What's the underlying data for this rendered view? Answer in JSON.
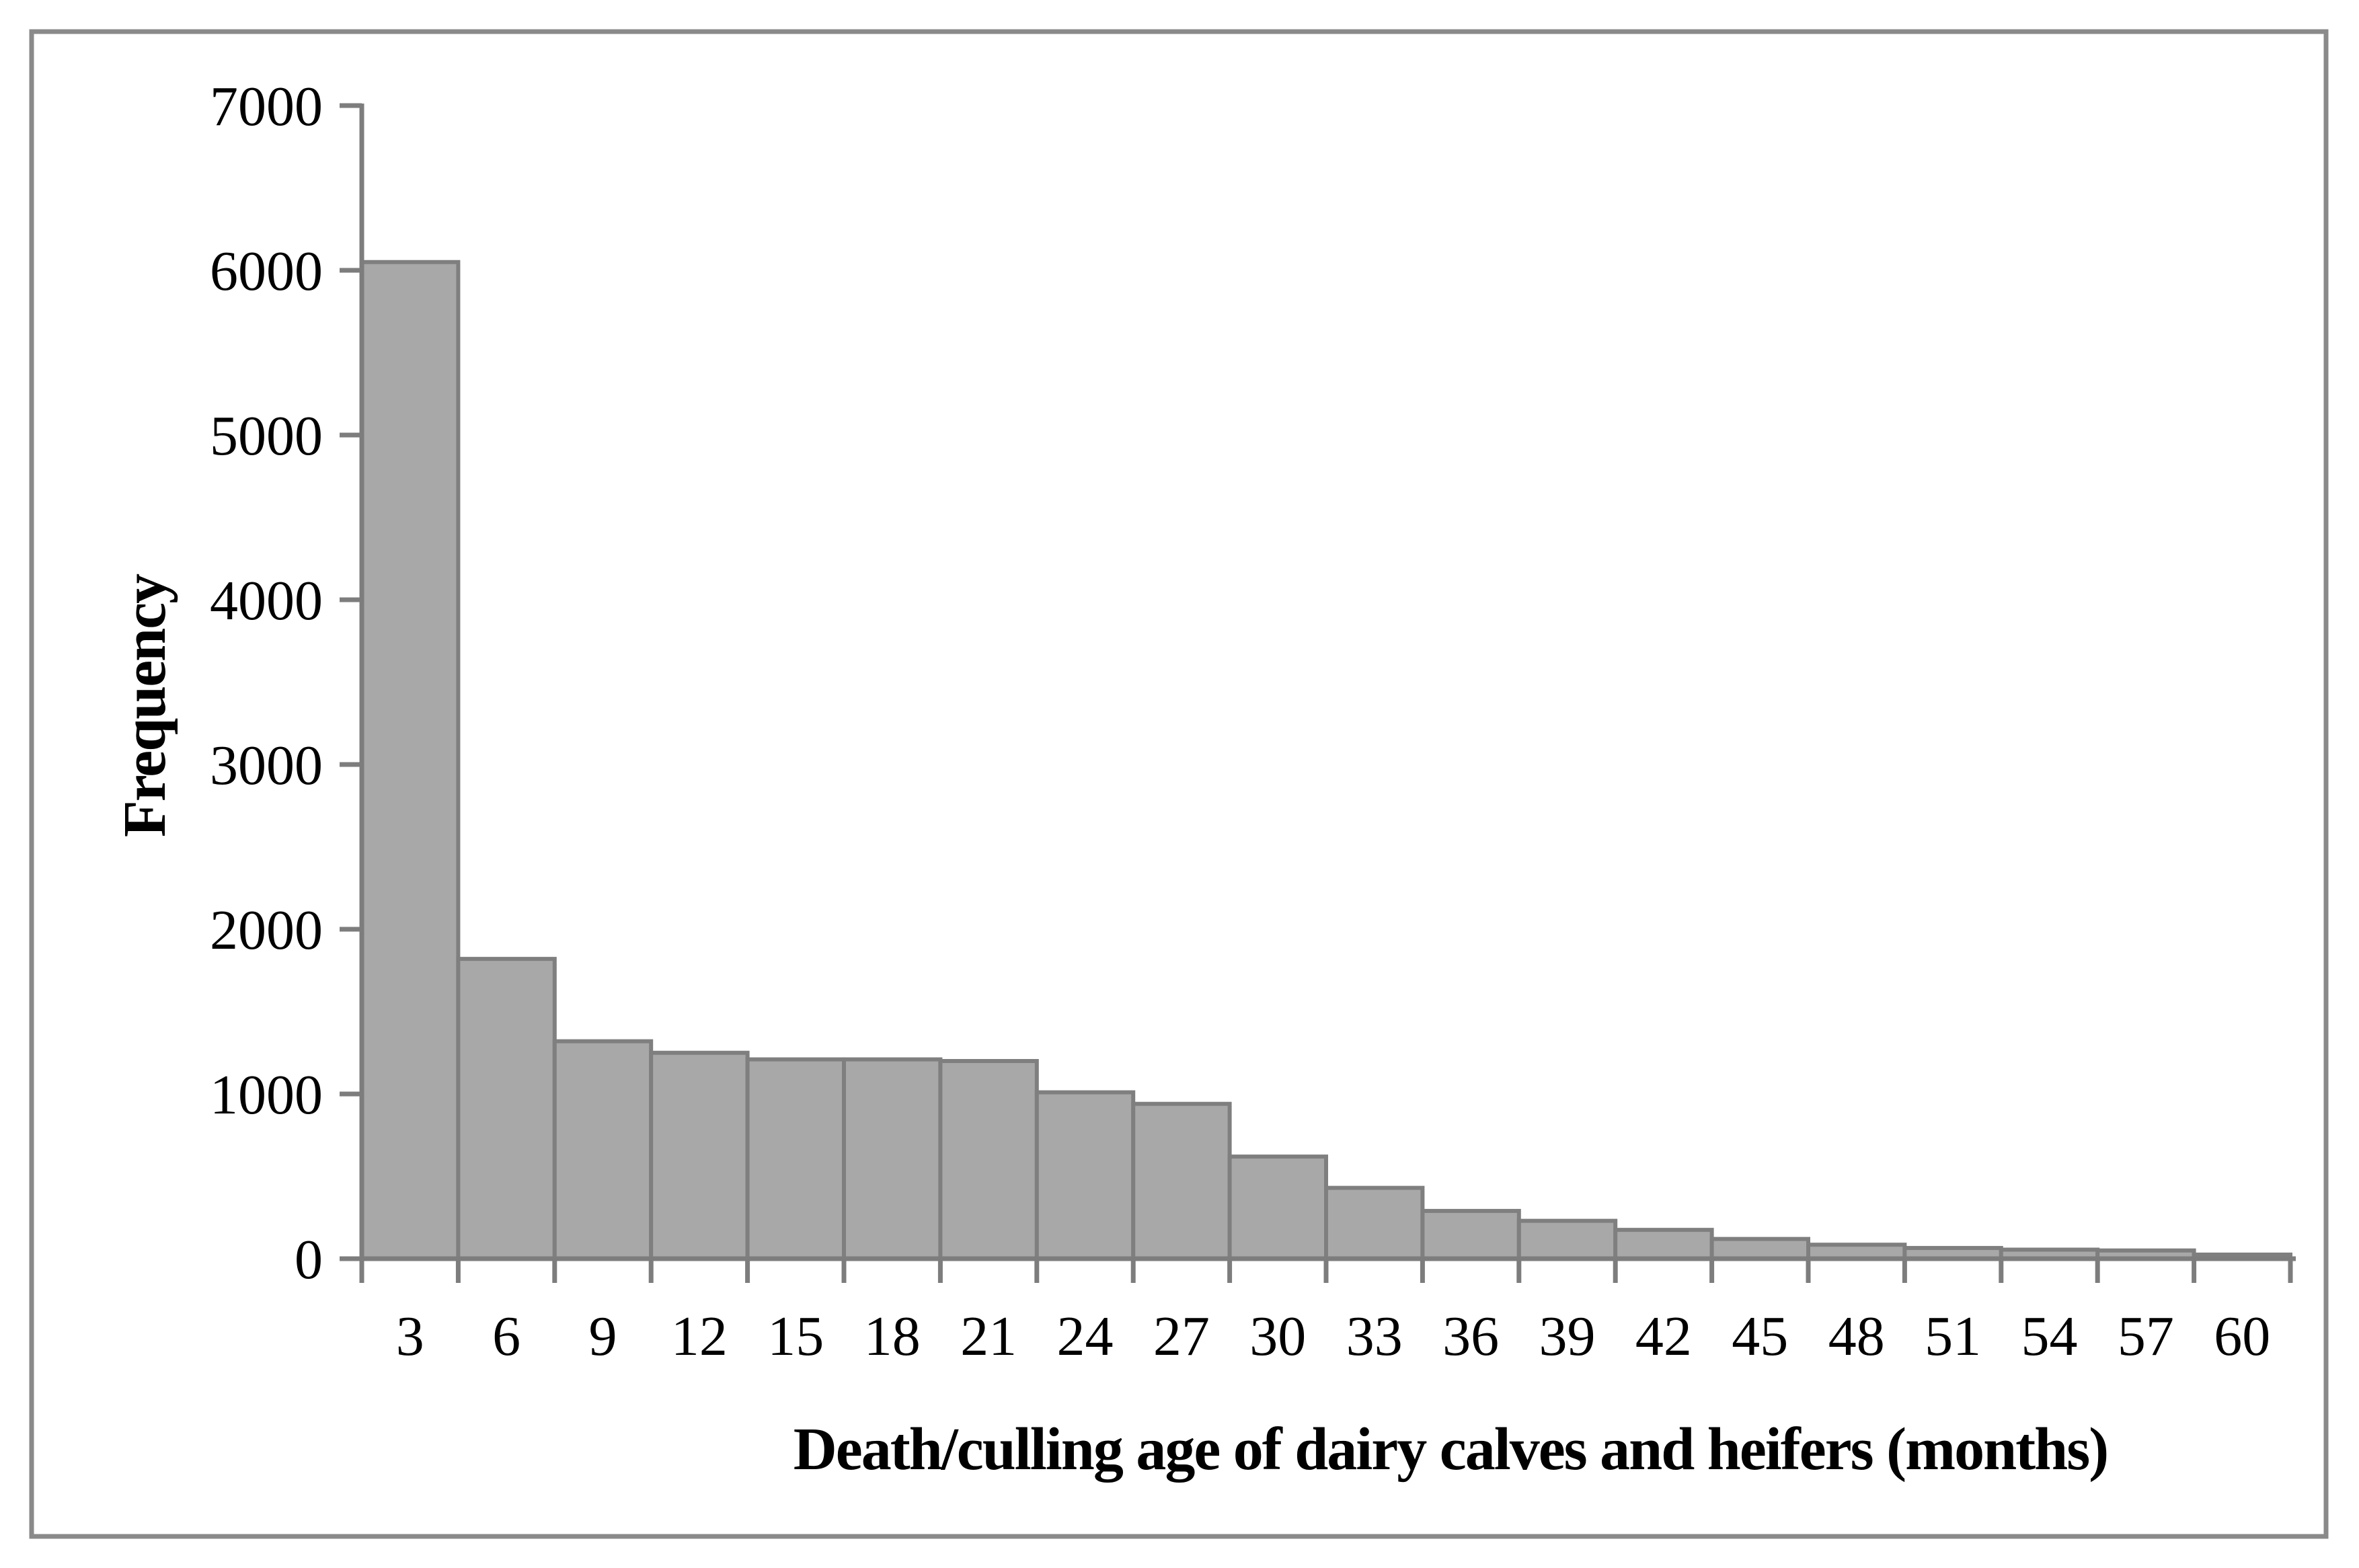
{
  "chart_data": {
    "type": "bar",
    "subtype": "histogram",
    "categories": [
      "3",
      "6",
      "9",
      "12",
      "15",
      "18",
      "21",
      "24",
      "27",
      "30",
      "33",
      "36",
      "39",
      "42",
      "45",
      "48",
      "51",
      "54",
      "57",
      "60"
    ],
    "values": [
      6050,
      1820,
      1320,
      1250,
      1210,
      1210,
      1200,
      1010,
      940,
      620,
      430,
      290,
      230,
      175,
      120,
      85,
      65,
      55,
      50,
      25
    ],
    "title": "",
    "xlabel": "Death/culling age of dairy calves and heifers (months)",
    "ylabel": "Frequency",
    "ylim": [
      0,
      7000
    ],
    "ytick_step": 1000,
    "yticks": [
      "0",
      "1000",
      "2000",
      "3000",
      "4000",
      "5000",
      "6000",
      "7000"
    ],
    "grid": false,
    "legend": "none",
    "colors": {
      "bar_fill": "#a8a8a8",
      "bar_stroke": "#7f7f7f",
      "axis": "#7d7d7d",
      "frame": "#8a8a8a",
      "text": "#000000",
      "background": "#ffffff"
    }
  }
}
